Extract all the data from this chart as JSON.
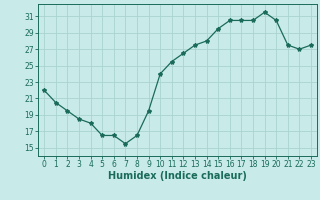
{
  "x": [
    0,
    1,
    2,
    3,
    4,
    5,
    6,
    7,
    8,
    9,
    10,
    11,
    12,
    13,
    14,
    15,
    16,
    17,
    18,
    19,
    20,
    21,
    22,
    23
  ],
  "y": [
    22,
    20.5,
    19.5,
    18.5,
    18,
    16.5,
    16.5,
    15.5,
    16.5,
    19.5,
    24,
    25.5,
    26.5,
    27.5,
    28,
    29.5,
    30.5,
    30.5,
    30.5,
    31.5,
    30.5,
    27.5,
    27,
    27.5
  ],
  "line_color": "#1a6b5a",
  "marker": "*",
  "marker_size": 3,
  "bg_color": "#c8eae8",
  "grid_color": "#aad4d0",
  "xlabel": "Humidex (Indice chaleur)",
  "xlim": [
    -0.5,
    23.5
  ],
  "ylim": [
    14,
    32.5
  ],
  "yticks": [
    15,
    17,
    19,
    21,
    23,
    25,
    27,
    29,
    31
  ],
  "xticks": [
    0,
    1,
    2,
    3,
    4,
    5,
    6,
    7,
    8,
    9,
    10,
    11,
    12,
    13,
    14,
    15,
    16,
    17,
    18,
    19,
    20,
    21,
    22,
    23
  ],
  "tick_fontsize": 5.5,
  "xlabel_fontsize": 7.0
}
